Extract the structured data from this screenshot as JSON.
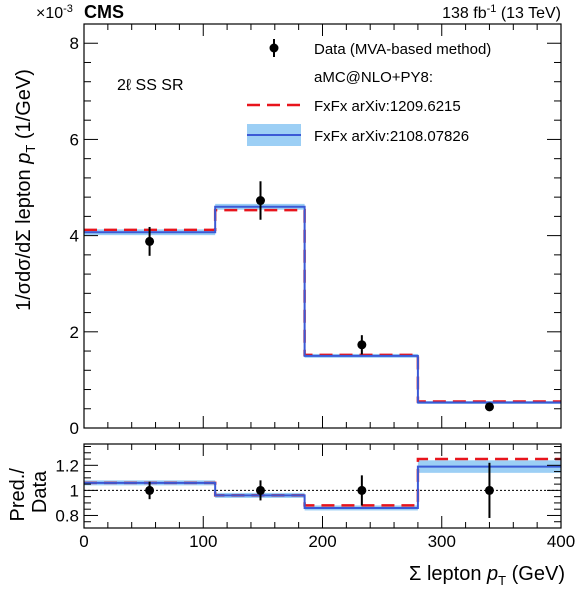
{
  "header": {
    "scale_base": "×10",
    "scale_exp": "-3",
    "experiment": "CMS",
    "lumi": "138 fb",
    "lumi_exp": "-1",
    "energy": " (13 TeV)"
  },
  "region_label": "2ℓ SS SR",
  "legend": {
    "data_label": "Data (MVA-based method)",
    "generator_label": "aMC@NLO+PY8:",
    "model1_label": "FxFx arXiv:1209.6215",
    "model2_label": "FxFx arXiv:2108.07826"
  },
  "top_axis": {
    "ylabel_pre": "1/σdσ/dΣ lepton ",
    "ylabel_p": "p",
    "ylabel_sub": "T",
    "ylabel_post": "(1/GeV)",
    "yticks": [
      "0",
      "2",
      "4",
      "6",
      "8"
    ]
  },
  "ratio_axis": {
    "ylabel_line1": "Pred./",
    "ylabel_line2": "Data",
    "yticks": [
      "0.8",
      "1",
      "1.2"
    ]
  },
  "x_axis": {
    "xlabel_pre": "Σ lepton ",
    "xlabel_p": "p",
    "xlabel_sub": "T",
    "xlabel_post": " (GeV)",
    "xticks": [
      "0",
      "100",
      "200",
      "300",
      "400"
    ]
  },
  "colors": {
    "data": "#000000",
    "model1": "#e8141c",
    "model2_line": "#3a5ad6",
    "model2_band": "#9ccff5"
  },
  "chart_data": [
    {
      "type": "line",
      "panel": "main",
      "title": "",
      "xlabel": "Σ lepton pT (GeV)",
      "ylabel": "1/σdσ/dΣ lepton pT (1/GeV)",
      "y_multiplier": "×10^-3",
      "xlim": [
        0,
        400
      ],
      "ylim": [
        0,
        8.4
      ],
      "bin_edges": [
        0,
        110,
        185,
        280,
        400
      ],
      "data": {
        "name": "Data (MVA-based method)",
        "x": [
          55,
          148,
          233,
          340
        ],
        "y": [
          3.88,
          4.73,
          1.73,
          0.44
        ],
        "err": [
          0.3,
          0.4,
          0.2,
          0.08
        ]
      },
      "series": [
        {
          "name": "FxFx arXiv:1209.6215",
          "style": "dashed",
          "values": [
            4.12,
            4.53,
            1.52,
            0.55
          ]
        },
        {
          "name": "FxFx arXiv:2108.07826",
          "style": "solid+band",
          "values": [
            4.07,
            4.6,
            1.5,
            0.53
          ],
          "band": [
            0.06,
            0.06,
            0.04,
            0.03
          ]
        }
      ]
    },
    {
      "type": "line",
      "panel": "ratio",
      "ylabel": "Pred./Data",
      "xlim": [
        0,
        400
      ],
      "ylim": [
        0.7,
        1.37
      ],
      "reference_line": 1,
      "bin_edges": [
        0,
        110,
        185,
        280,
        400
      ],
      "data": {
        "x": [
          55,
          148,
          233,
          340
        ],
        "y": [
          1,
          1,
          1,
          1
        ],
        "err": [
          0.07,
          0.08,
          0.12,
          0.22
        ]
      },
      "series": [
        {
          "name": "FxFx arXiv:1209.6215",
          "style": "dashed",
          "values": [
            1.06,
            0.96,
            0.88,
            1.25
          ]
        },
        {
          "name": "FxFx arXiv:2108.07826",
          "style": "solid+band",
          "values": [
            1.06,
            0.96,
            0.86,
            1.19
          ],
          "band": [
            0.02,
            0.02,
            0.02,
            0.05
          ]
        }
      ]
    }
  ]
}
